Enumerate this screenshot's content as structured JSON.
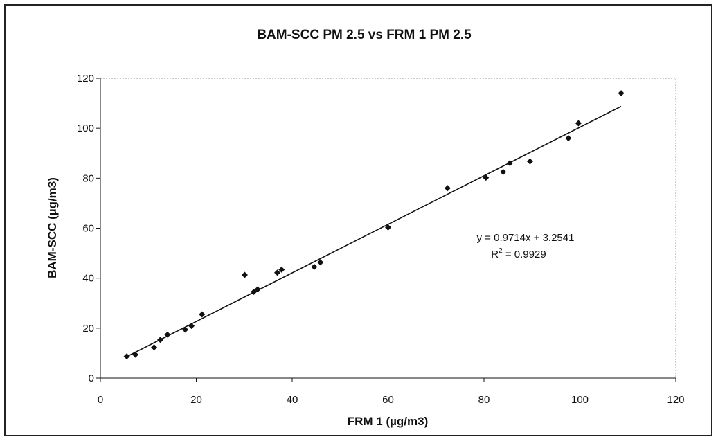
{
  "chart_data": {
    "type": "scatter",
    "title": "BAM-SCC PM 2.5 vs FRM 1 PM 2.5",
    "xlabel": "FRM 1 (µg/m3)",
    "ylabel": "BAM-SCC (µg/m3)",
    "xlim": [
      0,
      120
    ],
    "ylim": [
      0,
      120
    ],
    "x_ticks": [
      0,
      20,
      40,
      60,
      80,
      100,
      120
    ],
    "y_ticks": [
      0,
      20,
      40,
      60,
      80,
      100,
      120
    ],
    "grid": false,
    "legend": "none",
    "marker_color": "#111111",
    "series": [
      {
        "x": [
          5.5,
          7.3,
          11.2,
          12.5,
          14,
          17.7,
          19,
          21.2,
          30.1,
          32,
          32.8,
          36.9,
          37.8,
          44.6,
          45.9,
          60,
          72.4,
          80.4,
          84,
          85.4,
          89.6,
          97.6,
          99.7,
          108.6
        ],
        "y": [
          8.7,
          9.4,
          12.3,
          15.3,
          17.4,
          19.4,
          20.9,
          25.5,
          41.3,
          34.5,
          35.5,
          42.2,
          43.4,
          44.5,
          46.3,
          60.3,
          76,
          80.2,
          82.5,
          86,
          86.7,
          96,
          102,
          114
        ]
      }
    ],
    "trendline": {
      "slope": 0.9714,
      "intercept": 3.2541,
      "x_range": [
        5.5,
        108.6
      ],
      "equation_label": "y = 0.9714x + 3.2541",
      "r2_prefix": "R",
      "r2_superscript": "2",
      "r2_suffix": " = 0.9929"
    }
  }
}
